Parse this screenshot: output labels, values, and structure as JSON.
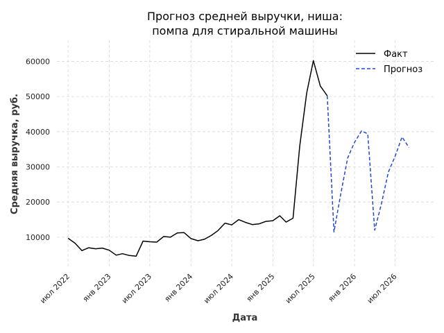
{
  "chart_data": {
    "type": "line",
    "title_line1": "Прогноз средней выручки, ниша:",
    "title_line2": "помпа для стиральной машины",
    "xlabel": "Дата",
    "ylabel": "Средняя выручка, руб.",
    "ylim": [
      1500,
      66000
    ],
    "yticks": [
      10000,
      20000,
      30000,
      40000,
      50000,
      60000
    ],
    "ytick_labels": [
      "10000",
      "20000",
      "30000",
      "40000",
      "50000",
      "60000"
    ],
    "xlim": [
      "2022-05-12",
      "2026-12-20"
    ],
    "xticks": [
      "2022-07-01",
      "2023-01-01",
      "2023-07-01",
      "2024-01-01",
      "2024-07-01",
      "2025-01-01",
      "2025-07-01",
      "2026-01-01",
      "2026-07-01"
    ],
    "xtick_labels": [
      "июл 2022",
      "янв 2023",
      "июл 2023",
      "янв 2024",
      "июл 2024",
      "янв 2025",
      "июл 2025",
      "янв 2026",
      "июл 2026"
    ],
    "grid": true,
    "legend_position": "top-right",
    "series": [
      {
        "name": "Факт",
        "color": "#000000",
        "style": "solid",
        "x": [
          "2022-07-01",
          "2022-08-01",
          "2022-09-01",
          "2022-10-01",
          "2022-11-01",
          "2022-12-01",
          "2023-01-01",
          "2023-02-01",
          "2023-03-01",
          "2023-04-01",
          "2023-05-01",
          "2023-06-01",
          "2023-07-01",
          "2023-08-01",
          "2023-09-01",
          "2023-10-01",
          "2023-11-01",
          "2023-12-01",
          "2024-01-01",
          "2024-02-01",
          "2024-03-01",
          "2024-04-01",
          "2024-05-01",
          "2024-06-01",
          "2024-07-01",
          "2024-08-01",
          "2024-09-01",
          "2024-10-01",
          "2024-11-01",
          "2024-12-01",
          "2025-01-01",
          "2025-02-01",
          "2025-03-01",
          "2025-04-01",
          "2025-05-01",
          "2025-06-01",
          "2025-07-01",
          "2025-08-01",
          "2025-09-01"
        ],
        "y": [
          9700,
          8300,
          6200,
          7000,
          6700,
          6900,
          6300,
          4900,
          5300,
          4800,
          4600,
          8900,
          8700,
          8600,
          10200,
          10000,
          11200,
          11300,
          9600,
          9000,
          9400,
          10500,
          11900,
          14000,
          13500,
          15000,
          14200,
          13600,
          13800,
          14500,
          14700,
          16100,
          14300,
          15400,
          36000,
          51000,
          60200,
          53000,
          50200
        ]
      },
      {
        "name": "Прогноз",
        "color": "#1f47d6",
        "style": "dashed",
        "x": [
          "2025-09-01",
          "2025-10-01",
          "2025-11-01",
          "2025-12-01",
          "2026-01-01",
          "2026-02-01",
          "2026-03-01",
          "2026-04-01",
          "2026-05-01",
          "2026-06-01",
          "2026-07-01",
          "2026-08-01",
          "2026-09-01"
        ],
        "y": [
          50200,
          11500,
          22500,
          32500,
          37000,
          40200,
          39400,
          12000,
          19500,
          28500,
          33000,
          38500,
          35500
        ]
      }
    ]
  }
}
